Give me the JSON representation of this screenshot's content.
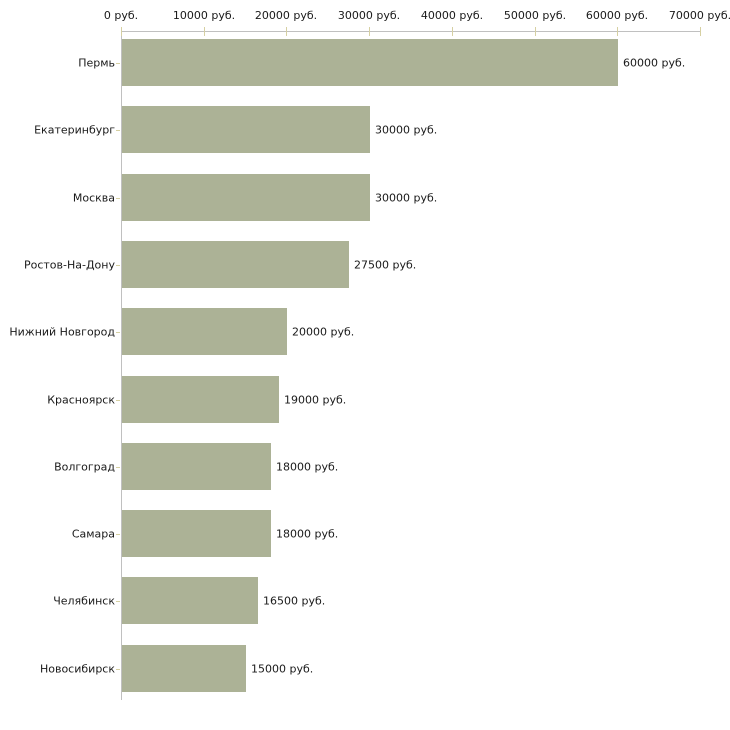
{
  "chart_data": {
    "type": "bar",
    "orientation": "horizontal",
    "title": "",
    "xlabel": "",
    "ylabel": "",
    "grid": false,
    "legend": null,
    "categories": [
      "Пермь",
      "Екатеринбург",
      "Москва",
      "Ростов-На-Дону",
      "Нижний Новгород",
      "Красноярск",
      "Волгоград",
      "Самара",
      "Челябинск",
      "Новосибирск"
    ],
    "values": [
      60000,
      30000,
      30000,
      27500,
      20000,
      19000,
      18000,
      18000,
      16500,
      15000
    ],
    "value_labels": [
      "60000 руб.",
      "30000 руб.",
      "30000 руб.",
      "27500 руб.",
      "20000 руб.",
      "19000 руб.",
      "18000 руб.",
      "18000 руб.",
      "16500 руб.",
      "15000 руб."
    ],
    "x_ticks": [
      0,
      10000,
      20000,
      30000,
      40000,
      50000,
      60000,
      70000
    ],
    "x_tick_labels": [
      "0 руб.",
      "10000 руб.",
      "20000 руб.",
      "30000 руб.",
      "40000 руб.",
      "50000 руб.",
      "60000 руб.",
      "70000 руб."
    ],
    "xlim": [
      0,
      70000
    ],
    "colors": {
      "bar": "#acb296",
      "axis_line": "#c0c0c0",
      "tick": "#d6d0a2",
      "text": "#1a1a1a",
      "background": "#ffffff"
    }
  }
}
